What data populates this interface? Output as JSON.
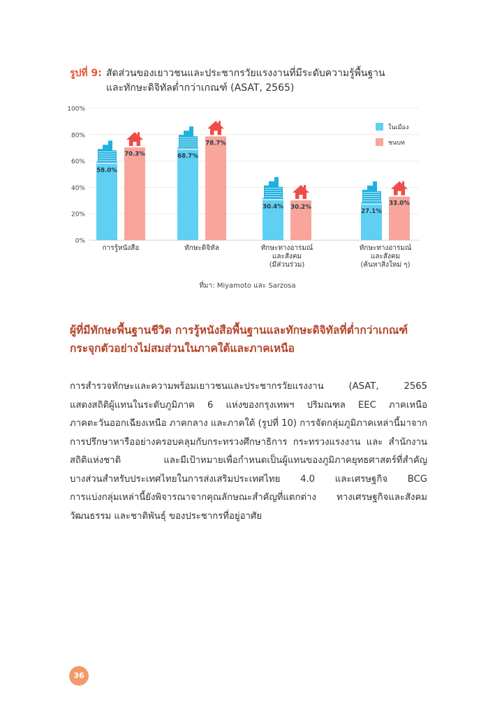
{
  "figure": {
    "label": "รูปที่ 9:",
    "title_line1": "สัดส่วนของเยาวชนและประชากรวัยแรงงานที่มีระดับความรู้พื้นฐาน",
    "title_line2": "และทักษะดิจิทัลต่ำกว่าเกณฑ์ (ASAT, 2565)",
    "source": "ที่มา: Miyamoto และ Sarzosa"
  },
  "chart_data": {
    "type": "bar",
    "title": "",
    "xlabel": "",
    "ylabel": "",
    "ylim": [
      0,
      100
    ],
    "yticks": [
      "0%",
      "20%",
      "40%",
      "60%",
      "80%",
      "100%"
    ],
    "grid": true,
    "legend_position": "top-right",
    "categories": [
      [
        "การรู้หนังสือ"
      ],
      [
        "ทักษะดิจิทัล"
      ],
      [
        "ทักษะทางอารมณ์",
        "และสังคม",
        "(มีส่วนร่วม)"
      ],
      [
        "ทักษะทางอารมณ์",
        "และสังคม",
        "(ค้นหาสิ่งใหม่ ๆ)"
      ]
    ],
    "series": [
      {
        "name": "ในเมือง",
        "values": [
          58.0,
          68.7,
          30.4,
          27.1
        ],
        "labels": [
          "58.0%",
          "68.7%",
          "30.4%",
          "27.1%"
        ],
        "color": "#5fd0f3",
        "icon": "city-buildings-icon"
      },
      {
        "name": "ชนบท",
        "values": [
          70.3,
          78.7,
          30.2,
          33.0
        ],
        "labels": [
          "70.3%",
          "78.7%",
          "30.2%",
          "33.0%"
        ],
        "color": "#f9a59b",
        "icon": "house-icon"
      }
    ]
  },
  "section": {
    "heading_line1": "ผู้ที่มีทักษะพื้นฐานชีวิต การรู้หนังสือพื้นฐานและทักษะดิจิทัลที่ต่ำกว่าเกณฑ์",
    "heading_line2": "กระจุกตัวอย่างไม่สมส่วนในภาคใต้และภาคเหนือ",
    "paragraph_lines": [
      "การสำรวจทักษะและความพร้อมเยาวชนและประชากรวัยแรงงาน (ASAT, 2565",
      "แสดงสถิติผู้แทนในระดับภูมิภาค 6 แห่งของกรุงเทพฯ ปริมณฑล EEC ภาคเหนือ",
      "ภาคตะวันออกเฉียงเหนือ ภาคกลาง และภาคใต้ (รูปที่ 10) การจัดกลุ่มภูมิภาคเหล่านี้มาจาก",
      "การปรึกษาหารืออย่างครอบคลุมกับกระทรวงศึกษาธิการ กระทรวงแรงงาน และ สำนักงาน",
      "สถิติแห่งชาติ และมีเป้าหมายเพื่อกำหนดเป็นผู้แทนของภูมิภาคยุทธศาสตร์ที่สำคัญ",
      "บางส่วนสำหรับประเทศไทยในการส่งเสริมประเทศไทย 4.0 และเศรษฐกิจ BCG",
      "การแบ่งกลุ่มเหล่านี้ยังพิจารณาจากคุณลักษณะสำคัญที่แตกต่าง ทางเศรษฐกิจและสังคม",
      "วัฒนธรรม และชาติพันธุ์ ของประชากรที่อยู่อาศัย"
    ]
  },
  "page_number": "36",
  "colors": {
    "accent": "#e8542e",
    "heading": "#b5452a",
    "page_badge": "#f39a6b"
  }
}
